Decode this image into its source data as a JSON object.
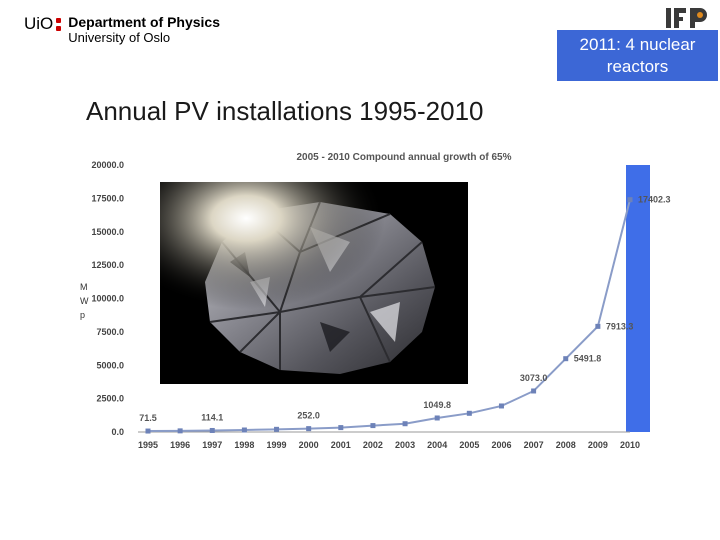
{
  "header": {
    "uio_mark": "UiO",
    "department": "Department of Physics",
    "university": "University of Oslo",
    "ifp_logo_text": "IFP"
  },
  "callout": {
    "text": "2011: 4 nuclear reactors"
  },
  "page_title": "Annual PV installations 1995-2010",
  "colors": {
    "callout_bg": "#3c67d6",
    "arrow": "#3c67d6",
    "bar": "#3f6ee8",
    "line": "#8a9cc8",
    "marker": "#6d82b8"
  },
  "chart_data": {
    "type": "line",
    "title": "2005 - 2010 Compound annual growth of 65%",
    "ylabel": "MWp",
    "xlabel": "",
    "categories": [
      "1995",
      "1996",
      "1997",
      "1998",
      "1999",
      "2000",
      "2001",
      "2002",
      "2003",
      "2004",
      "2005",
      "2006",
      "2007",
      "2008",
      "2009",
      "2010"
    ],
    "values": [
      71.5,
      85,
      114.1,
      150,
      200,
      252.0,
      330,
      480,
      620,
      1049.8,
      1400,
      1950,
      3073.0,
      5491.8,
      7913.3,
      17402.3
    ],
    "data_labels": [
      {
        "index": 0,
        "text": "71.5"
      },
      {
        "index": 2,
        "text": "114.1"
      },
      {
        "index": 5,
        "text": "252.0"
      },
      {
        "index": 9,
        "text": "1049.8"
      },
      {
        "index": 12,
        "text": "3073.0"
      },
      {
        "index": 13,
        "text": "5491.8"
      },
      {
        "index": 14,
        "text": "7913.3"
      },
      {
        "index": 15,
        "text": "17402.3"
      }
    ],
    "yticks": [
      "0.0",
      "2500.0",
      "5000.0",
      "7500.0",
      "10000.0",
      "12500.0",
      "15000.0",
      "17500.0",
      "20000.0"
    ],
    "ylim": [
      0,
      20000
    ],
    "grid": false,
    "highlight": {
      "label": "2011",
      "value": 20000
    }
  }
}
